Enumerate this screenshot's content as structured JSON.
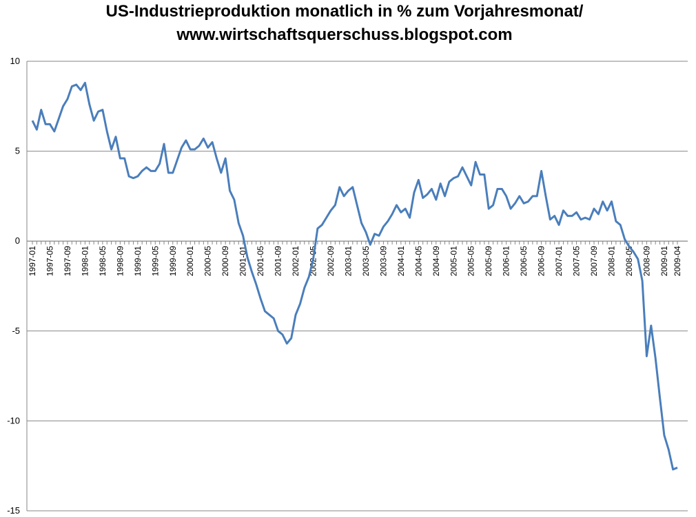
{
  "chart_data": {
    "type": "line",
    "title": [
      "US-Industrieproduktion monatlich in % zum Vorjahresmonat/",
      "www.wirtschaftsquerschuss.blogspot.com"
    ],
    "categories": [
      "1997-01",
      null,
      null,
      null,
      "1997-05",
      null,
      null,
      null,
      "1997-09",
      null,
      null,
      null,
      "1998-01",
      null,
      null,
      null,
      "1998-05",
      null,
      null,
      null,
      "1998-09",
      null,
      null,
      null,
      "1999-01",
      null,
      null,
      null,
      "1999-05",
      null,
      null,
      null,
      "1999-09",
      null,
      null,
      null,
      "2000-01",
      null,
      null,
      null,
      "2000-05",
      null,
      null,
      null,
      "2000-09",
      null,
      null,
      null,
      "2001-01",
      null,
      null,
      null,
      "2001-05",
      null,
      null,
      null,
      "2001-09",
      null,
      null,
      null,
      "2002-01",
      null,
      null,
      null,
      "2002-05",
      null,
      null,
      null,
      "2002-09",
      null,
      null,
      null,
      "2003-01",
      null,
      null,
      null,
      "2003-05",
      null,
      null,
      null,
      "2003-09",
      null,
      null,
      null,
      "2004-01",
      null,
      null,
      null,
      "2004-05",
      null,
      null,
      null,
      "2004-09",
      null,
      null,
      null,
      "2005-01",
      null,
      null,
      null,
      "2005-05",
      null,
      null,
      null,
      "2005-09",
      null,
      null,
      null,
      "2006-01",
      null,
      null,
      null,
      "2006-05",
      null,
      null,
      null,
      "2006-09",
      null,
      null,
      null,
      "2007-01",
      null,
      null,
      null,
      "2007-05",
      null,
      null,
      null,
      "2007-09",
      null,
      null,
      null,
      "2008-01",
      null,
      null,
      null,
      "2008-05",
      null,
      null,
      null,
      "2008-09",
      null,
      null,
      null,
      "2009-01",
      null,
      null,
      "2009-04"
    ],
    "series": [
      {
        "color": "#4a7ebb",
        "values": [
          6.7,
          6.2,
          7.3,
          6.5,
          6.5,
          6.1,
          6.8,
          7.5,
          7.9,
          8.6,
          8.7,
          8.4,
          8.8,
          7.6,
          6.7,
          7.2,
          7.3,
          6.1,
          5.1,
          5.8,
          4.6,
          4.6,
          3.6,
          3.5,
          3.6,
          3.9,
          4.1,
          3.9,
          3.9,
          4.3,
          5.4,
          3.8,
          3.8,
          4.5,
          5.2,
          5.6,
          5.1,
          5.1,
          5.3,
          5.7,
          5.2,
          5.5,
          4.6,
          3.8,
          4.6,
          2.8,
          2.3,
          1.0,
          0.3,
          -0.9,
          -1.7,
          -2.4,
          -3.2,
          -3.9,
          -4.1,
          -4.3,
          -5.0,
          -5.2,
          -5.7,
          -5.4,
          -4.1,
          -3.5,
          -2.6,
          -2.0,
          -1.0,
          0.7,
          0.9,
          1.3,
          1.7,
          2.0,
          3.0,
          2.5,
          2.8,
          3.0,
          2.0,
          1.0,
          0.5,
          -0.2,
          0.4,
          0.3,
          0.8,
          1.1,
          1.5,
          2.0,
          1.6,
          1.8,
          1.3,
          2.7,
          3.4,
          2.4,
          2.6,
          2.9,
          2.3,
          3.2,
          2.5,
          3.3,
          3.5,
          3.6,
          4.1,
          3.6,
          3.1,
          4.4,
          3.7,
          3.7,
          1.8,
          2.0,
          2.9,
          2.9,
          2.5,
          1.8,
          2.1,
          2.5,
          2.1,
          2.2,
          2.5,
          2.5,
          3.9,
          2.5,
          1.2,
          1.4,
          0.9,
          1.7,
          1.4,
          1.4,
          1.6,
          1.2,
          1.3,
          1.2,
          1.8,
          1.5,
          2.2,
          1.7,
          2.2,
          1.1,
          0.9,
          0.1,
          -0.3,
          -0.6,
          -1.0,
          -2.2,
          -6.4,
          -4.7,
          -6.5,
          -8.7,
          -10.8,
          -11.6,
          -12.7,
          -12.6
        ]
      }
    ],
    "ylim": [
      -15,
      10
    ],
    "yticks": [
      10,
      5,
      0,
      -5,
      -10,
      -15
    ],
    "grid": true
  }
}
